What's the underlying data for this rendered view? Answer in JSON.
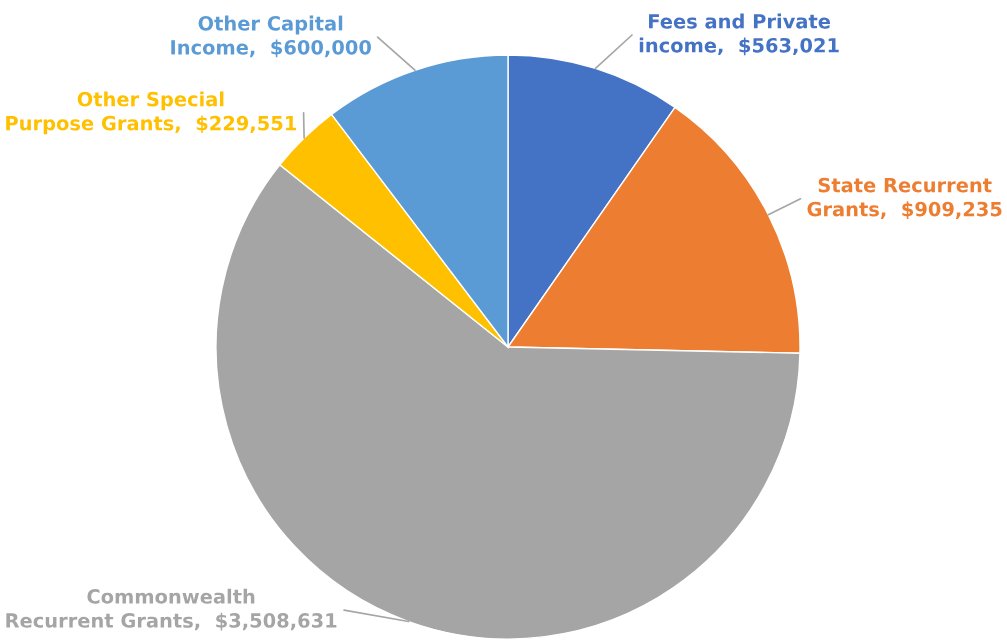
{
  "chart_data": {
    "type": "pie",
    "categories": [
      "Fees and Private\nincome",
      "State Recurrent\nGrants",
      "Commonwealth\nRecurrent Grants",
      "Other Special\nPurpose Grants",
      "Other Capital\nIncome"
    ],
    "values": [
      563021,
      909235,
      3508631,
      229551,
      600000
    ],
    "value_labels": [
      "$563,021",
      "$909,235",
      "$3,508,631",
      "$229,551",
      "$600,000"
    ],
    "colors": [
      "#4472c4",
      "#ed7d31",
      "#a5a5a5",
      "#ffc000",
      "#5b9bd5"
    ],
    "legend": false
  }
}
